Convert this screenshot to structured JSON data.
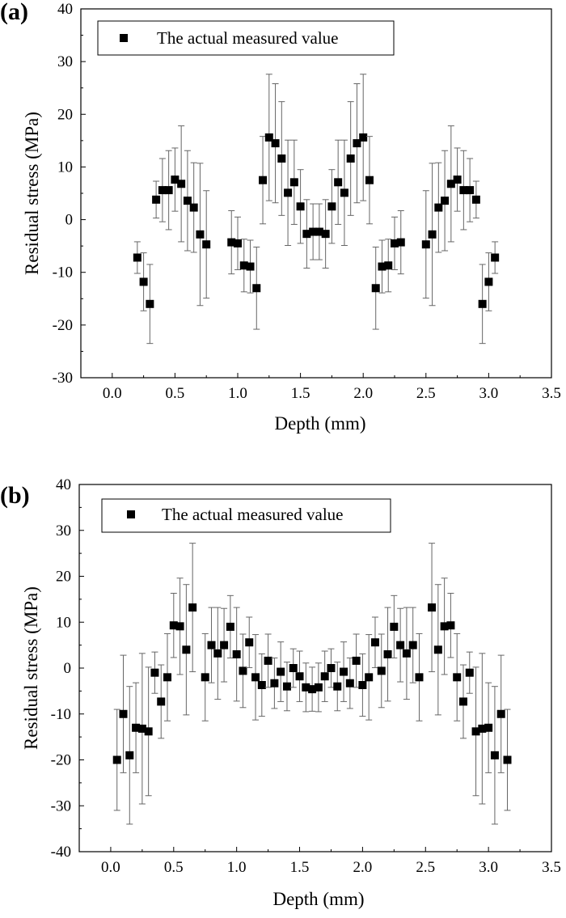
{
  "chart_data": [
    {
      "panel_label": "(a)",
      "type": "scatter",
      "xlabel": "Depth (mm)",
      "ylabel": "Residual stress (MPa)",
      "xlim": [
        -0.25,
        3.5
      ],
      "ylim": [
        -30,
        40
      ],
      "xticks": [
        0.0,
        0.5,
        1.0,
        1.5,
        2.0,
        2.5,
        3.0,
        3.5
      ],
      "xtick_labels": [
        "0.0",
        "0.5",
        "1.0",
        "1.5",
        "2.0",
        "2.5",
        "3.0",
        "3.5"
      ],
      "yticks": [
        -30,
        -20,
        -10,
        0,
        10,
        20,
        30,
        40
      ],
      "ytick_labels": [
        "-30",
        "-20",
        "-10",
        "0",
        "10",
        "20",
        "30",
        "40"
      ],
      "legend": {
        "label": "The actual measured value",
        "position": "top-left"
      },
      "series": [
        {
          "name": "The actual measured value",
          "marker": "square",
          "color": "#000000",
          "error_color": "#666666",
          "points": [
            {
              "x": 0.2,
              "y": -7.2,
              "err": 3.0
            },
            {
              "x": 0.25,
              "y": -11.8,
              "err": 5.5
            },
            {
              "x": 0.3,
              "y": -16.0,
              "err": 7.5
            },
            {
              "x": 0.35,
              "y": 3.8,
              "err": 3.5
            },
            {
              "x": 0.4,
              "y": 5.6,
              "err": 6.0
            },
            {
              "x": 0.45,
              "y": 5.6,
              "err": 7.5
            },
            {
              "x": 0.5,
              "y": 7.6,
              "err": 6.0
            },
            {
              "x": 0.55,
              "y": 6.8,
              "err": 11.0
            },
            {
              "x": 0.6,
              "y": 3.6,
              "err": 9.5
            },
            {
              "x": 0.65,
              "y": 2.3,
              "err": 8.5
            },
            {
              "x": 0.7,
              "y": -2.8,
              "err": 13.5
            },
            {
              "x": 0.75,
              "y": -4.7,
              "err": 10.2
            },
            {
              "x": 0.95,
              "y": -4.3,
              "err": 6.0
            },
            {
              "x": 1.0,
              "y": -4.5,
              "err": 5.0
            },
            {
              "x": 1.05,
              "y": -8.7,
              "err": 5.0
            },
            {
              "x": 1.1,
              "y": -8.9,
              "err": 5.0
            },
            {
              "x": 1.15,
              "y": -13.0,
              "err": 7.8
            },
            {
              "x": 1.2,
              "y": 7.5,
              "err": 8.3
            },
            {
              "x": 1.25,
              "y": 15.6,
              "err": 12.0
            },
            {
              "x": 1.3,
              "y": 14.5,
              "err": 11.3
            },
            {
              "x": 1.35,
              "y": 11.6,
              "err": 10.8
            },
            {
              "x": 1.4,
              "y": 5.1,
              "err": 10.0
            },
            {
              "x": 1.45,
              "y": 7.1,
              "err": 8.0
            },
            {
              "x": 1.5,
              "y": 2.5,
              "err": 7.0
            },
            {
              "x": 1.55,
              "y": -2.7,
              "err": 6.5
            },
            {
              "x": 1.6,
              "y": -2.3,
              "err": 5.3
            },
            {
              "x": 1.65,
              "y": -2.3,
              "err": 5.3
            },
            {
              "x": 1.7,
              "y": -2.7,
              "err": 6.5
            },
            {
              "x": 1.75,
              "y": 2.5,
              "err": 7.0
            },
            {
              "x": 1.8,
              "y": 7.1,
              "err": 8.0
            },
            {
              "x": 1.85,
              "y": 5.1,
              "err": 10.0
            },
            {
              "x": 1.9,
              "y": 11.6,
              "err": 10.8
            },
            {
              "x": 1.95,
              "y": 14.5,
              "err": 11.3
            },
            {
              "x": 2.0,
              "y": 15.6,
              "err": 12.0
            },
            {
              "x": 2.05,
              "y": 7.5,
              "err": 8.3
            },
            {
              "x": 2.1,
              "y": -13.0,
              "err": 7.8
            },
            {
              "x": 2.15,
              "y": -8.9,
              "err": 5.0
            },
            {
              "x": 2.2,
              "y": -8.7,
              "err": 5.0
            },
            {
              "x": 2.25,
              "y": -4.5,
              "err": 5.0
            },
            {
              "x": 2.3,
              "y": -4.3,
              "err": 6.0
            },
            {
              "x": 2.5,
              "y": -4.7,
              "err": 10.2
            },
            {
              "x": 2.55,
              "y": -2.8,
              "err": 13.5
            },
            {
              "x": 2.6,
              "y": 2.3,
              "err": 8.5
            },
            {
              "x": 2.65,
              "y": 3.6,
              "err": 9.5
            },
            {
              "x": 2.7,
              "y": 6.8,
              "err": 11.0
            },
            {
              "x": 2.75,
              "y": 7.6,
              "err": 6.0
            },
            {
              "x": 2.8,
              "y": 5.6,
              "err": 7.5
            },
            {
              "x": 2.85,
              "y": 5.6,
              "err": 6.0
            },
            {
              "x": 2.9,
              "y": 3.8,
              "err": 3.5
            },
            {
              "x": 2.95,
              "y": -16.0,
              "err": 7.5
            },
            {
              "x": 3.0,
              "y": -11.8,
              "err": 5.5
            },
            {
              "x": 3.05,
              "y": -7.2,
              "err": 3.0
            }
          ]
        }
      ]
    },
    {
      "panel_label": "(b)",
      "type": "scatter",
      "xlabel": "Depth (mm)",
      "ylabel": "Residual stress (MPa)",
      "xlim": [
        -0.25,
        3.5
      ],
      "ylim": [
        -40,
        40
      ],
      "xticks": [
        0.0,
        0.5,
        1.0,
        1.5,
        2.0,
        2.5,
        3.0,
        3.5
      ],
      "xtick_labels": [
        "0.0",
        "0.5",
        "1.0",
        "1.5",
        "2.0",
        "2.5",
        "3.0",
        "3.5"
      ],
      "yticks": [
        -40,
        -30,
        -20,
        -10,
        0,
        10,
        20,
        30,
        40
      ],
      "ytick_labels": [
        "-40",
        "-30",
        "-20",
        "-10",
        "0",
        "10",
        "20",
        "30",
        "40"
      ],
      "legend": {
        "label": "The actual measured value",
        "position": "top-left"
      },
      "series": [
        {
          "name": "The actual measured value",
          "marker": "square",
          "color": "#000000",
          "error_color": "#666666",
          "points": [
            {
              "x": 0.05,
              "y": -20.0,
              "err": 11.0
            },
            {
              "x": 0.1,
              "y": -10.0,
              "err": 12.8
            },
            {
              "x": 0.15,
              "y": -19.0,
              "err": 15.0
            },
            {
              "x": 0.2,
              "y": -13.0,
              "err": 9.8
            },
            {
              "x": 0.25,
              "y": -13.2,
              "err": 16.4
            },
            {
              "x": 0.3,
              "y": -13.8,
              "err": 14.0
            },
            {
              "x": 0.35,
              "y": -1.0,
              "err": 4.5
            },
            {
              "x": 0.4,
              "y": -7.3,
              "err": 8.0
            },
            {
              "x": 0.45,
              "y": -2.0,
              "err": 9.5
            },
            {
              "x": 0.5,
              "y": 9.3,
              "err": 7.0
            },
            {
              "x": 0.55,
              "y": 9.1,
              "err": 10.5
            },
            {
              "x": 0.6,
              "y": 4.0,
              "err": 14.2
            },
            {
              "x": 0.65,
              "y": 13.2,
              "err": 14.0
            },
            {
              "x": 0.75,
              "y": -2.0,
              "err": 9.5
            },
            {
              "x": 0.8,
              "y": 5.0,
              "err": 8.2
            },
            {
              "x": 0.85,
              "y": 3.2,
              "err": 10.0
            },
            {
              "x": 0.9,
              "y": 5.0,
              "err": 8.0
            },
            {
              "x": 0.95,
              "y": 9.0,
              "err": 6.8
            },
            {
              "x": 1.0,
              "y": 3.0,
              "err": 10.2
            },
            {
              "x": 1.05,
              "y": -0.6,
              "err": 8.0
            },
            {
              "x": 1.1,
              "y": 5.6,
              "err": 5.5
            },
            {
              "x": 1.15,
              "y": -2.0,
              "err": 9.3
            },
            {
              "x": 1.2,
              "y": -3.7,
              "err": 6.8
            },
            {
              "x": 1.25,
              "y": 1.6,
              "err": 5.8
            },
            {
              "x": 1.3,
              "y": -3.3,
              "err": 5.5
            },
            {
              "x": 1.35,
              "y": -0.8,
              "err": 6.5
            },
            {
              "x": 1.4,
              "y": -4.0,
              "err": 5.3
            },
            {
              "x": 1.45,
              "y": 0.0,
              "err": 4.2
            },
            {
              "x": 1.5,
              "y": -1.8,
              "err": 5.5
            },
            {
              "x": 1.55,
              "y": -4.2,
              "err": 5.3
            },
            {
              "x": 1.6,
              "y": -4.6,
              "err": 4.8
            },
            {
              "x": 1.65,
              "y": -4.2,
              "err": 5.3
            },
            {
              "x": 1.7,
              "y": -1.8,
              "err": 5.5
            },
            {
              "x": 1.75,
              "y": 0.0,
              "err": 4.2
            },
            {
              "x": 1.8,
              "y": -4.0,
              "err": 5.3
            },
            {
              "x": 1.85,
              "y": -0.8,
              "err": 6.5
            },
            {
              "x": 1.9,
              "y": -3.3,
              "err": 5.5
            },
            {
              "x": 1.95,
              "y": 1.6,
              "err": 5.8
            },
            {
              "x": 2.0,
              "y": -3.7,
              "err": 6.8
            },
            {
              "x": 2.05,
              "y": -2.0,
              "err": 9.3
            },
            {
              "x": 2.1,
              "y": 5.6,
              "err": 5.5
            },
            {
              "x": 2.15,
              "y": -0.6,
              "err": 8.0
            },
            {
              "x": 2.2,
              "y": 3.0,
              "err": 10.2
            },
            {
              "x": 2.25,
              "y": 9.0,
              "err": 6.8
            },
            {
              "x": 2.3,
              "y": 5.0,
              "err": 8.0
            },
            {
              "x": 2.35,
              "y": 3.2,
              "err": 10.0
            },
            {
              "x": 2.4,
              "y": 5.0,
              "err": 8.2
            },
            {
              "x": 2.45,
              "y": -2.0,
              "err": 9.5
            },
            {
              "x": 2.55,
              "y": 13.2,
              "err": 14.0
            },
            {
              "x": 2.6,
              "y": 4.0,
              "err": 14.2
            },
            {
              "x": 2.65,
              "y": 9.1,
              "err": 10.5
            },
            {
              "x": 2.7,
              "y": 9.3,
              "err": 7.0
            },
            {
              "x": 2.75,
              "y": -2.0,
              "err": 9.5
            },
            {
              "x": 2.8,
              "y": -7.3,
              "err": 8.0
            },
            {
              "x": 2.85,
              "y": -1.0,
              "err": 4.5
            },
            {
              "x": 2.9,
              "y": -13.8,
              "err": 14.0
            },
            {
              "x": 2.95,
              "y": -13.2,
              "err": 16.4
            },
            {
              "x": 3.0,
              "y": -13.0,
              "err": 9.8
            },
            {
              "x": 3.05,
              "y": -19.0,
              "err": 15.0
            },
            {
              "x": 3.1,
              "y": -10.0,
              "err": 12.8
            },
            {
              "x": 3.15,
              "y": -20.0,
              "err": 11.0
            }
          ]
        }
      ]
    }
  ]
}
